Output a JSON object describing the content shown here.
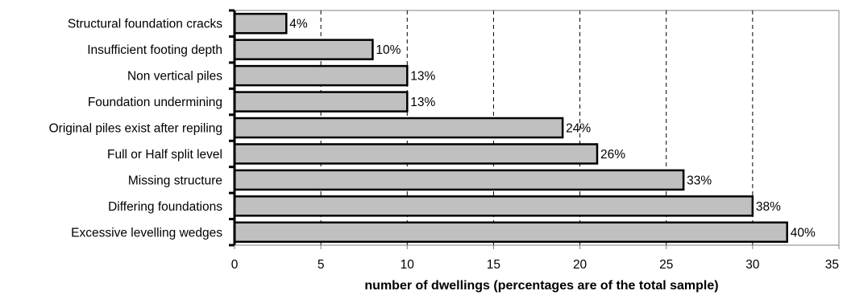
{
  "chart_data": {
    "type": "bar",
    "orientation": "horizontal",
    "categories": [
      "Structural foundation cracks",
      "Insufficient footing depth",
      "Non vertical piles",
      "Foundation undermining",
      "Original piles exist after repiling",
      "Full or Half split level",
      "Missing structure",
      "Differing foundations",
      "Excessive levelling wedges"
    ],
    "values": [
      3,
      8,
      10,
      10,
      19,
      21,
      26,
      30,
      32
    ],
    "data_labels": [
      "4%",
      "10%",
      "13%",
      "13%",
      "24%",
      "26%",
      "33%",
      "38%",
      "40%"
    ],
    "title": "",
    "xlabel": "number of dwellings (percentages are of the total sample)",
    "ylabel": "",
    "xlim": [
      0,
      35
    ],
    "x_ticks": [
      0,
      5,
      10,
      15,
      20,
      25,
      30,
      35
    ],
    "x_tick_labels": [
      "0",
      "5",
      "10",
      "15",
      "20",
      "25",
      "30",
      "35"
    ],
    "grid": "vertical dashed",
    "legend": "none",
    "colors": {
      "bar_fill": "#c0c0c0",
      "bar_edge": "#000000",
      "grid": "#000000",
      "plot_border": "#808080",
      "axis": "#000000"
    }
  }
}
